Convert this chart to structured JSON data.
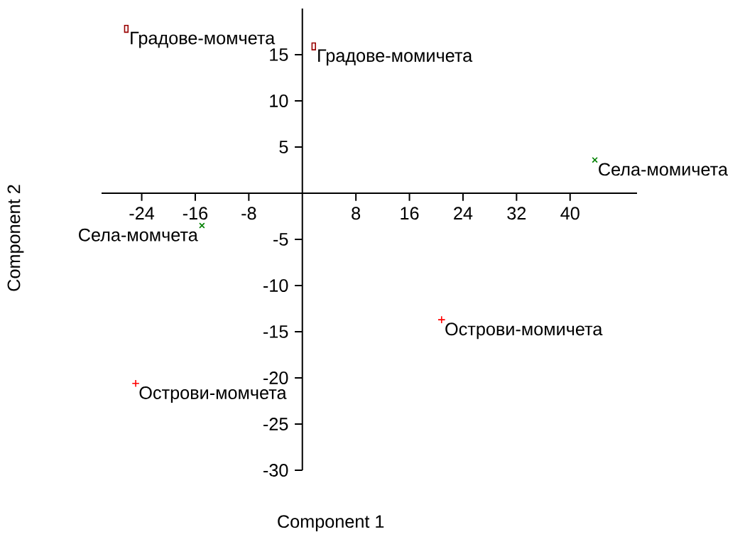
{
  "chart_data": {
    "type": "scatter",
    "xlabel": "Component 1",
    "ylabel": "Component 2",
    "series": [
      {
        "color": "#990000",
        "marker": "square",
        "x": [
          -26.3,
          1.7
        ],
        "values": [
          17.8,
          15.9
        ]
      },
      {
        "color": "#008000",
        "marker": "cross",
        "x": [
          -15.0,
          43.7
        ],
        "values": [
          -3.5,
          3.6
        ]
      },
      {
        "color": "#ff0000",
        "marker": "plus",
        "x": [
          -24.9,
          20.8
        ],
        "values": [
          -20.6,
          -13.7
        ]
      }
    ],
    "xlim": [
      -30,
      50
    ],
    "ylim": [
      -30,
      20
    ],
    "xticks": [
      -24,
      -16,
      -8,
      8,
      16,
      24,
      32,
      40
    ],
    "yticks": [
      -30,
      -25,
      -20,
      -15,
      -10,
      -5,
      5,
      10,
      15
    ],
    "annotations": [
      {
        "text": "Градове-момчета",
        "x": -26.3,
        "y": 17.8
      },
      {
        "text": "Градове-момичета",
        "x": 1.7,
        "y": 15.9
      },
      {
        "text": "Села-момчета",
        "x": -15.0,
        "y": -3.5
      },
      {
        "text": "Села-момичета",
        "x": 43.7,
        "y": 3.6
      },
      {
        "text": "Острови-момичета",
        "x": 20.8,
        "y": -13.7
      },
      {
        "text": "Острови-момчета",
        "x": -24.9,
        "y": -20.6
      }
    ]
  }
}
